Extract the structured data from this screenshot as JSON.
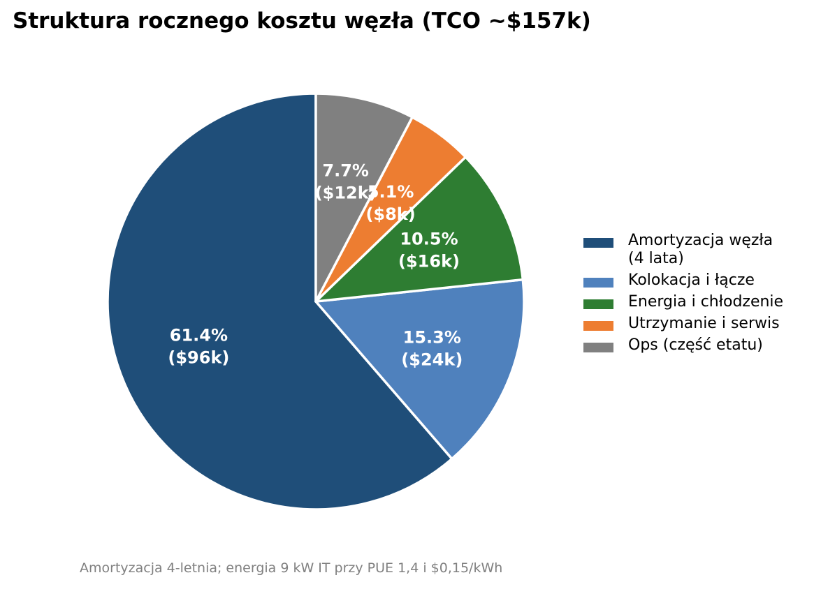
{
  "chart_data": {
    "type": "pie",
    "title": "Struktura rocznego kosztu węzła (TCO ~$157k)",
    "footnote": "Amortyzacja 4-letnia; energia 9 kW IT przy PUE 1,4 i $0,15/kWh",
    "legend_position": "right",
    "slices": [
      {
        "name": "Amortyzacja węzła\n(4 lata)",
        "value": 96,
        "percent_label": "61.4%",
        "value_label": "($96k)",
        "color": "#1f4e79"
      },
      {
        "name": "Kolokacja i łącze",
        "value": 24,
        "percent_label": "15.3%",
        "value_label": "($24k)",
        "color": "#4f81bd"
      },
      {
        "name": "Energia i chłodzenie",
        "value": 16.5,
        "percent_label": "10.5%",
        "value_label": "($16k)",
        "color": "#2e7d32"
      },
      {
        "name": "Utrzymanie i serwis",
        "value": 8,
        "percent_label": "5.1%",
        "value_label": "($8k)",
        "color": "#ed7d31"
      },
      {
        "name": "Ops (część etatu)",
        "value": 12,
        "percent_label": "7.7%",
        "value_label": "($12k)",
        "color": "#808080"
      }
    ]
  }
}
